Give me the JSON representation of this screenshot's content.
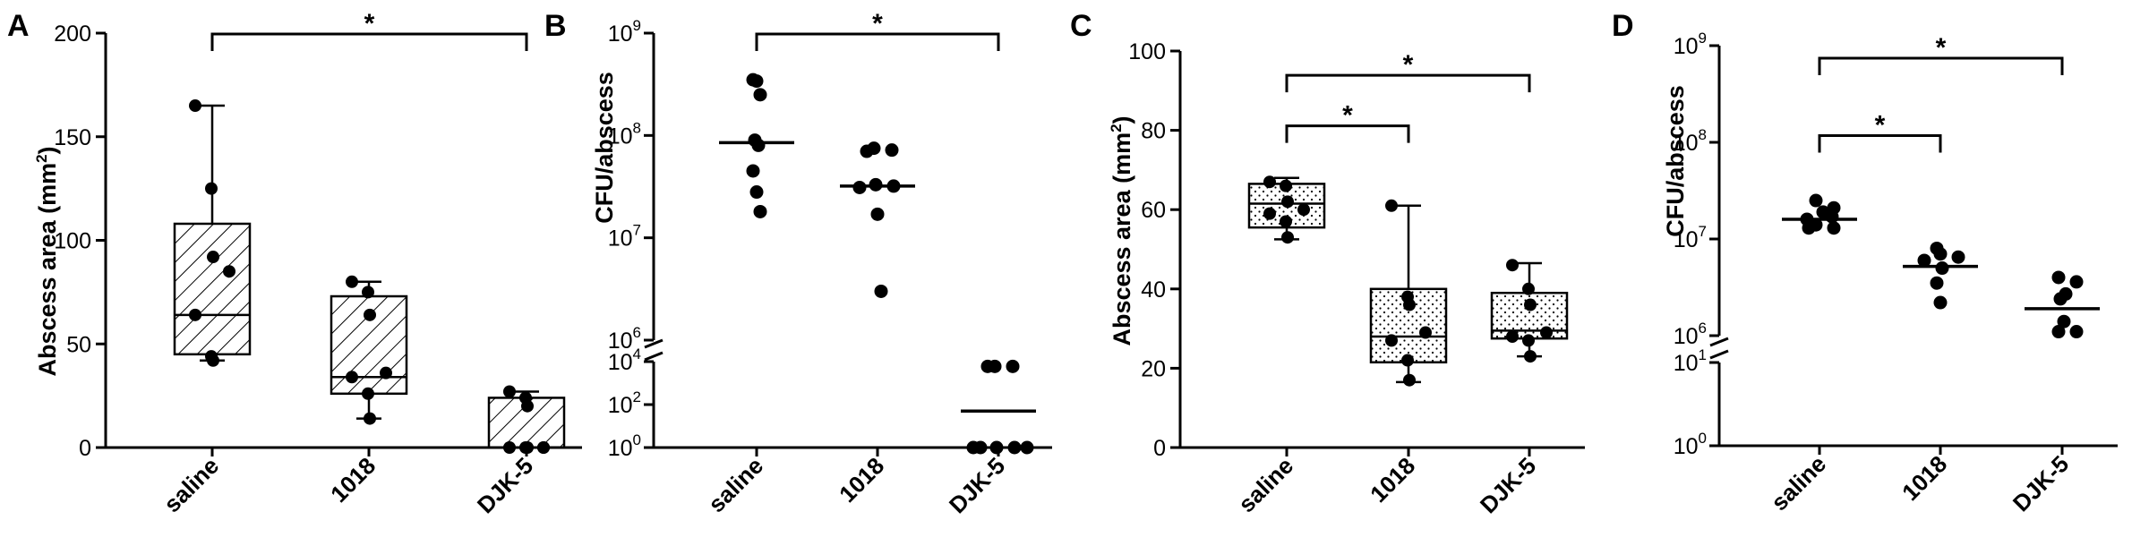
{
  "chart_data": [
    {
      "panel": "A",
      "type": "box",
      "ylabel": "Abscess area (mm",
      "ylabel_sup": "2",
      "ylabel_end": ")",
      "yscale": "linear",
      "ylim": [
        0,
        200
      ],
      "yticks": [
        0,
        50,
        100,
        150,
        200
      ],
      "categories": [
        "saline",
        "1018",
        "DJK-5"
      ],
      "box_fill": "diagonal",
      "boxes": [
        {
          "min": 42,
          "q1": 45,
          "median": 64,
          "q3": 108,
          "max": 165
        },
        {
          "min": 14,
          "q1": 26,
          "median": 34,
          "q3": 73,
          "max": 80
        },
        {
          "min": 0,
          "q1": 0,
          "median": 0,
          "q3": 24,
          "max": 27
        }
      ],
      "points": [
        [
          165,
          125,
          92,
          85,
          64,
          44,
          42
        ],
        [
          80,
          75,
          64,
          36,
          34,
          26,
          14
        ],
        [
          27,
          24,
          20,
          0,
          0,
          0,
          0,
          0
        ]
      ],
      "comparisons": [
        {
          "from": 0,
          "to": 2,
          "label": "*"
        }
      ]
    },
    {
      "panel": "B",
      "type": "scatter",
      "ylabel": "CFU/abscess",
      "yscale": "broken-log",
      "upper_range": [
        1000000,
        1000000000
      ],
      "lower_range": [
        1,
        10000
      ],
      "yticks": [
        {
          "base": "10",
          "exp": "9"
        },
        {
          "base": "10",
          "exp": "8"
        },
        {
          "base": "10",
          "exp": "7"
        },
        {
          "base": "10",
          "exp": "6"
        },
        {
          "base": "10",
          "exp": "4"
        },
        {
          "base": "10",
          "exp": "2"
        },
        {
          "base": "10",
          "exp": "0"
        }
      ],
      "categories": [
        "saline",
        "1018",
        "DJK-5"
      ],
      "points": [
        [
          350000000,
          340000000,
          250000000,
          90000000,
          80000000,
          45000000,
          28000000,
          18000000
        ],
        [
          75000000,
          72000000,
          70000000,
          33000000,
          32000000,
          31000000,
          17000000,
          3000000
        ],
        [
          6000,
          6000,
          6000,
          1,
          1,
          1,
          1,
          1
        ]
      ],
      "means": [
        85000000,
        32000000,
        50
      ],
      "comparisons": [
        {
          "from": 0,
          "to": 2,
          "label": "*"
        }
      ]
    },
    {
      "panel": "C",
      "type": "box",
      "ylabel": "Abscess area (mm",
      "ylabel_sup": "2",
      "ylabel_end": ")",
      "yscale": "linear",
      "ylim": [
        0,
        100
      ],
      "yticks": [
        0,
        20,
        40,
        60,
        80,
        100
      ],
      "categories": [
        "saline",
        "1018",
        "DJK-5"
      ],
      "box_fill": "dotted",
      "boxes": [
        {
          "min": 52.5,
          "q1": 55.5,
          "median": 61.5,
          "q3": 66.5,
          "max": 68
        },
        {
          "min": 16.5,
          "q1": 21.5,
          "median": 28,
          "q3": 40,
          "max": 61
        },
        {
          "min": 23,
          "q1": 27.5,
          "median": 29.5,
          "q3": 39,
          "max": 46.5
        }
      ],
      "points": [
        [
          67,
          66,
          62,
          60,
          59,
          57,
          53
        ],
        [
          61,
          38,
          36,
          29,
          27,
          22,
          17
        ],
        [
          46,
          40,
          36,
          29,
          28,
          27,
          23
        ]
      ],
      "comparisons": [
        {
          "from": 0,
          "to": 1,
          "label": "*"
        },
        {
          "from": 0,
          "to": 2,
          "label": "*"
        }
      ]
    },
    {
      "panel": "D",
      "type": "scatter",
      "ylabel": "CFU/abscess",
      "yscale": "broken-log",
      "upper_range": [
        1000000,
        1000000000
      ],
      "lower_range": [
        1,
        10
      ],
      "yticks": [
        {
          "base": "10",
          "exp": "9"
        },
        {
          "base": "10",
          "exp": "8"
        },
        {
          "base": "10",
          "exp": "7"
        },
        {
          "base": "10",
          "exp": "6"
        },
        {
          "base": "10",
          "exp": "1"
        },
        {
          "base": "10",
          "exp": "0"
        }
      ],
      "categories": [
        "saline",
        "1018",
        "DJK-5"
      ],
      "points": [
        [
          25000000,
          21000000,
          19000000,
          17000000,
          16000000,
          14000000,
          13000000,
          13000000
        ],
        [
          8000000,
          7000000,
          6500000,
          6000000,
          5000000,
          3500000,
          2200000
        ],
        [
          4000000,
          3600000,
          2700000,
          2400000,
          1400000,
          1100000,
          1100000
        ]
      ],
      "means": [
        16000000,
        5200000,
        1900000
      ],
      "comparisons": [
        {
          "from": 0,
          "to": 1,
          "label": "*"
        },
        {
          "from": 0,
          "to": 2,
          "label": "*"
        }
      ]
    }
  ]
}
